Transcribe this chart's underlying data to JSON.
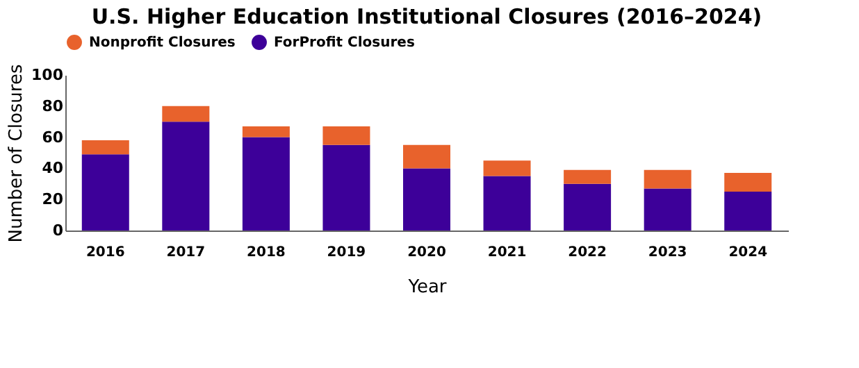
{
  "chart_data": {
    "type": "bar",
    "title": "U.S. Higher Education Institutional Closures (2016–2024)",
    "xlabel": "Year",
    "ylabel": "Number of Closures",
    "categories": [
      "2016",
      "2017",
      "2018",
      "2019",
      "2020",
      "2021",
      "2022",
      "2023",
      "2024"
    ],
    "stacked": true,
    "series": [
      {
        "name": "ForProfit Closures",
        "color": "#3d0099",
        "values": [
          49,
          70,
          60,
          55,
          40,
          35,
          30,
          27,
          25
        ]
      },
      {
        "name": "Nonprofit Closures",
        "color": "#e8622c",
        "values": [
          9,
          10,
          7,
          12,
          15,
          10,
          9,
          12,
          12
        ]
      }
    ],
    "ylim": [
      0,
      100
    ],
    "yticks": [
      0,
      20,
      40,
      60,
      80,
      100
    ],
    "grid": false,
    "legend": "top"
  }
}
